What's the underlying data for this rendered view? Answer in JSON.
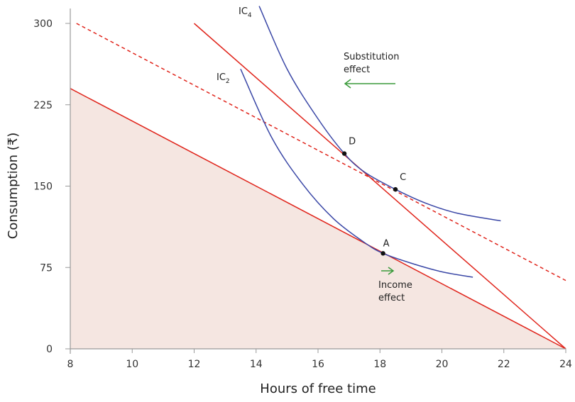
{
  "chart_data": {
    "type": "line",
    "xlabel": "Hours of free time",
    "ylabel": "Consumption (₹)",
    "xlim": [
      8,
      24
    ],
    "ylim": [
      0,
      300
    ],
    "xticks": [
      "8",
      "10",
      "12",
      "14",
      "16",
      "18",
      "20",
      "22",
      "24"
    ],
    "yticks": [
      "0",
      "75",
      "150",
      "225",
      "300"
    ],
    "grid": false,
    "lines": [
      {
        "id": "budget-original",
        "style": "solid",
        "shaded": true,
        "points": [
          [
            8,
            240
          ],
          [
            24,
            0
          ]
        ]
      },
      {
        "id": "budget-new",
        "style": "solid",
        "points": [
          [
            12,
            300
          ],
          [
            24,
            0
          ]
        ]
      },
      {
        "id": "budget-dashed",
        "style": "dashed",
        "points": [
          [
            8.2,
            300
          ],
          [
            24,
            63
          ]
        ]
      }
    ],
    "curves": [
      {
        "name": "IC",
        "sub": "2",
        "points": [
          [
            13.5,
            258
          ],
          [
            14.5,
            195
          ],
          [
            15.5,
            152
          ],
          [
            16.5,
            120
          ],
          [
            17.5,
            98
          ],
          [
            18.1,
            88
          ],
          [
            19,
            79
          ],
          [
            20,
            71
          ],
          [
            21,
            66
          ]
        ]
      },
      {
        "name": "IC",
        "sub": "4",
        "points": [
          [
            14.1,
            316
          ],
          [
            15,
            258
          ],
          [
            16,
            212
          ],
          [
            16.85,
            180
          ],
          [
            17.5,
            163
          ],
          [
            18.5,
            147
          ],
          [
            19.5,
            134
          ],
          [
            20.5,
            125
          ],
          [
            21.9,
            118
          ]
        ]
      }
    ],
    "points": [
      {
        "label": "A",
        "x": 18.1,
        "y": 88
      },
      {
        "label": "D",
        "x": 16.85,
        "y": 180
      },
      {
        "label": "C",
        "x": 18.5,
        "y": 147
      }
    ],
    "annotations": [
      {
        "lines": [
          "Substitution",
          "effect"
        ],
        "arrow": "left"
      },
      {
        "lines": [
          "Income",
          "effect"
        ],
        "arrow": "right"
      }
    ],
    "colors": {
      "budget": "#e0241b",
      "ic": "#3a47a6",
      "shade": "#f5e6e1",
      "arrow": "#3a9a3a",
      "axis": "#999999"
    }
  }
}
